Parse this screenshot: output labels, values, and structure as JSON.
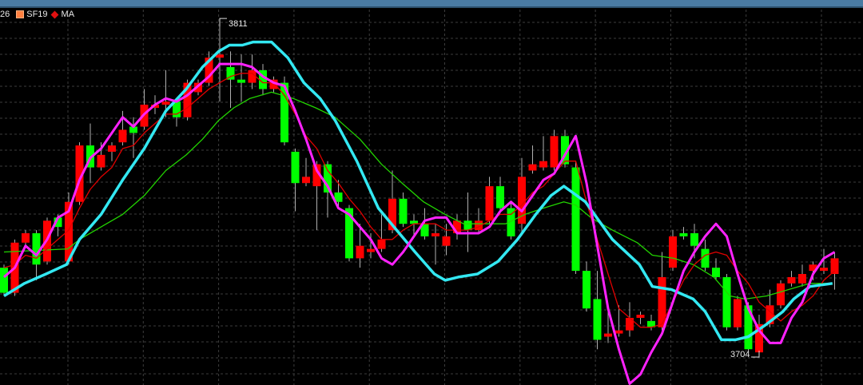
{
  "legend": {
    "prefix": "26",
    "symbol": "SF19",
    "indicator": "MA",
    "symbol_color": "#ff8040",
    "indicator_color": "#e01010"
  },
  "chart_data": {
    "type": "candlestick",
    "title": "",
    "grid": true,
    "ylim": [
      3695,
      3817
    ],
    "colors": {
      "up": "#ff0000",
      "down": "#00ff00",
      "wick": "#b0b0b0",
      "background": "#000000"
    },
    "annotations": [
      {
        "text": "3811",
        "candle": 20,
        "kind": "high"
      },
      {
        "text": "3704",
        "candle": 70,
        "kind": "low"
      }
    ],
    "candles_ohlc": [
      [
        3732,
        3733,
        3723,
        3724
      ],
      [
        3724,
        3741,
        3723,
        3740
      ],
      [
        3740,
        3744,
        3739,
        3743
      ],
      [
        3743,
        3744,
        3728,
        3733
      ],
      [
        3734,
        3748,
        3733,
        3747
      ],
      [
        3748,
        3749,
        3742,
        3745
      ],
      [
        3734,
        3756,
        3733,
        3753
      ],
      [
        3753,
        3772,
        3752,
        3771
      ],
      [
        3771,
        3778,
        3759,
        3764
      ],
      [
        3764,
        3772,
        3763,
        3768
      ],
      [
        3769,
        3772,
        3766,
        3771
      ],
      [
        3772,
        3782,
        3771,
        3776
      ],
      [
        3777,
        3780,
        3767,
        3775
      ],
      [
        3777,
        3789,
        3776,
        3784
      ],
      [
        3783,
        3787,
        3781,
        3784
      ],
      [
        3784,
        3795,
        3780,
        3785
      ],
      [
        3785,
        3786,
        3777,
        3780
      ],
      [
        3780,
        3792,
        3779,
        3791
      ],
      [
        3788,
        3792,
        3787,
        3791
      ],
      [
        3791,
        3801,
        3790,
        3799
      ],
      [
        3799,
        3811,
        3785,
        3800
      ],
      [
        3796,
        3801,
        3783,
        3792
      ],
      [
        3792,
        3800,
        3785,
        3791
      ],
      [
        3791,
        3800,
        3789,
        3795
      ],
      [
        3795,
        3797,
        3787,
        3789
      ],
      [
        3789,
        3793,
        3788,
        3792
      ],
      [
        3791,
        3793,
        3771,
        3772
      ],
      [
        3769,
        3770,
        3750,
        3759
      ],
      [
        3759,
        3767,
        3758,
        3761
      ],
      [
        3758,
        3766,
        3744,
        3765
      ],
      [
        3765,
        3766,
        3748,
        3756
      ],
      [
        3756,
        3760,
        3751,
        3753
      ],
      [
        3751,
        3752,
        3734,
        3735
      ],
      [
        3735,
        3746,
        3732,
        3739
      ],
      [
        3737,
        3743,
        3735,
        3738
      ],
      [
        3738,
        3749,
        3737,
        3741
      ],
      [
        3744,
        3763,
        3743,
        3754
      ],
      [
        3754,
        3756,
        3745,
        3746
      ],
      [
        3747,
        3749,
        3742,
        3746
      ],
      [
        3746,
        3751,
        3741,
        3742
      ],
      [
        3742,
        3746,
        3733,
        3743
      ],
      [
        3739,
        3746,
        3736,
        3742
      ],
      [
        3743,
        3749,
        3741,
        3747
      ],
      [
        3747,
        3756,
        3737,
        3744
      ],
      [
        3744,
        3751,
        3743,
        3747
      ],
      [
        3747,
        3761,
        3746,
        3758
      ],
      [
        3758,
        3761,
        3750,
        3751
      ],
      [
        3751,
        3753,
        3741,
        3742
      ],
      [
        3746,
        3767,
        3743,
        3761
      ],
      [
        3763,
        3771,
        3762,
        3765
      ],
      [
        3764,
        3774,
        3763,
        3766
      ],
      [
        3764,
        3776,
        3763,
        3774
      ],
      [
        3774,
        3776,
        3764,
        3765
      ],
      [
        3764,
        3766,
        3730,
        3731
      ],
      [
        3731,
        3734,
        3718,
        3719
      ],
      [
        3722,
        3731,
        3706,
        3709
      ],
      [
        3710,
        3718,
        3708,
        3711
      ],
      [
        3711,
        3720,
        3710,
        3712
      ],
      [
        3712,
        3721,
        3710,
        3716
      ],
      [
        3716,
        3718,
        3714,
        3717
      ],
      [
        3715,
        3717,
        3712,
        3713
      ],
      [
        3713,
        3737,
        3712,
        3729
      ],
      [
        3732,
        3744,
        3731,
        3742
      ],
      [
        3743,
        3745,
        3741,
        3742
      ],
      [
        3743,
        3746,
        3735,
        3739
      ],
      [
        3738,
        3741,
        3731,
        3732
      ],
      [
        3732,
        3735,
        3728,
        3729
      ],
      [
        3729,
        3730,
        3712,
        3713
      ],
      [
        3713,
        3723,
        3712,
        3722
      ],
      [
        3720,
        3721,
        3705,
        3706
      ],
      [
        3705,
        3717,
        3704,
        3714
      ],
      [
        3714,
        3725,
        3713,
        3720
      ],
      [
        3720,
        3728,
        3719,
        3727
      ],
      [
        3727,
        3731,
        3726,
        3729
      ],
      [
        3727,
        3733,
        3726,
        3730
      ],
      [
        3731,
        3734,
        3728,
        3733
      ],
      [
        3731,
        3738,
        3730,
        3732
      ],
      [
        3730,
        3737,
        3725,
        3735
      ]
    ],
    "lines": [
      {
        "color": "#ff22ff",
        "values": [
          3729,
          3732,
          3739,
          3736,
          3741,
          3748,
          3750,
          3760,
          3767,
          3770,
          3775,
          3780,
          3777,
          3781,
          3784,
          3786,
          3785,
          3787,
          3790,
          3793,
          3797,
          3797,
          3797,
          3796,
          3793,
          3791,
          3790,
          3782,
          3773,
          3763,
          3758,
          3751,
          3749,
          3745,
          3741,
          3735,
          3733,
          3737,
          3742,
          3747,
          3748,
          3748,
          3743,
          3743,
          3743,
          3745,
          3750,
          3753,
          3750,
          3755,
          3760,
          3762,
          3768,
          3774,
          3759,
          3739,
          3719,
          3706,
          3695,
          3698,
          3705,
          3711,
          3721,
          3731,
          3737,
          3742,
          3746,
          3742,
          3730,
          3719,
          3712,
          3708,
          3708,
          3716,
          3721,
          3730,
          3735,
          3737
        ]
      },
      {
        "color": "#e00000",
        "values": [
          3732,
          3733,
          3736,
          3735,
          3738,
          3741,
          3744,
          3751,
          3757,
          3761,
          3764,
          3770,
          3771,
          3775,
          3778,
          3781,
          3781,
          3783,
          3786,
          3789,
          3791,
          3793,
          3794,
          3794,
          3791,
          3791,
          3787,
          3781,
          3774,
          3770,
          3763,
          3759,
          3754,
          3750,
          3745,
          3741,
          3741,
          3744,
          3746,
          3746,
          3746,
          3744,
          3744,
          3744,
          3745,
          3747,
          3749,
          3749,
          3752,
          3756,
          3758,
          3762,
          3766,
          3766,
          3753,
          3741,
          3730,
          3719,
          3716,
          3713,
          3713,
          3714,
          3721,
          3728,
          3733,
          3736,
          3737,
          3736,
          3731,
          3727,
          3721,
          3718,
          3715,
          3718,
          3720,
          3723,
          3728,
          3731
        ]
      },
      {
        "color": "#22d400",
        "points": [
          [
            0,
            3737
          ],
          [
            5.9,
            3738
          ],
          [
            7,
            3741
          ],
          [
            9,
            3745
          ],
          [
            11,
            3749
          ],
          [
            13,
            3755
          ],
          [
            15,
            3763
          ],
          [
            16.9,
            3768
          ],
          [
            18.4,
            3773
          ],
          [
            19.9,
            3779
          ],
          [
            21.3,
            3783
          ],
          [
            22.8,
            3786
          ],
          [
            24.8,
            3788
          ],
          [
            26.8,
            3786
          ],
          [
            28.9,
            3783
          ],
          [
            30.7,
            3780
          ],
          [
            33,
            3773
          ],
          [
            35,
            3765
          ],
          [
            36.9,
            3759
          ],
          [
            38.9,
            3753
          ],
          [
            40.9,
            3749
          ],
          [
            42.6,
            3746
          ],
          [
            44.1,
            3746
          ],
          [
            46.5,
            3746
          ],
          [
            48.3,
            3749
          ],
          [
            50,
            3751
          ],
          [
            51.9,
            3753
          ],
          [
            53,
            3752
          ],
          [
            54.4,
            3748
          ],
          [
            56.4,
            3744
          ],
          [
            58.7,
            3740
          ],
          [
            60.1,
            3736
          ],
          [
            62.1,
            3735
          ],
          [
            63.9,
            3733
          ],
          [
            65.8,
            3729
          ],
          [
            67.3,
            3723
          ],
          [
            68.7,
            3722
          ],
          [
            70.7,
            3723
          ],
          [
            72.7,
            3725
          ],
          [
            74.7,
            3727
          ],
          [
            76.8,
            3727
          ]
        ]
      },
      {
        "color": "#33e8f2",
        "points": [
          [
            0,
            3723
          ],
          [
            1.9,
            3727
          ],
          [
            3.9,
            3730
          ],
          [
            5.8,
            3733
          ],
          [
            7,
            3741
          ],
          [
            9,
            3749
          ],
          [
            11,
            3760
          ],
          [
            13,
            3770
          ],
          [
            15,
            3782
          ],
          [
            16.9,
            3789
          ],
          [
            18.4,
            3796
          ],
          [
            19.9,
            3801
          ],
          [
            20.9,
            3803
          ],
          [
            22.1,
            3803
          ],
          [
            23.1,
            3804
          ],
          [
            24.8,
            3804
          ],
          [
            26.3,
            3799
          ],
          [
            27.8,
            3791
          ],
          [
            29.3,
            3786
          ],
          [
            30.7,
            3779
          ],
          [
            32.7,
            3766
          ],
          [
            34.7,
            3751
          ],
          [
            36.4,
            3744
          ],
          [
            38.1,
            3737
          ],
          [
            39.9,
            3730
          ],
          [
            40.9,
            3728
          ],
          [
            42.1,
            3729
          ],
          [
            43.9,
            3730
          ],
          [
            45.8,
            3734
          ],
          [
            47.6,
            3741
          ],
          [
            49.3,
            3749
          ],
          [
            50.7,
            3755
          ],
          [
            51.9,
            3758
          ],
          [
            53.9,
            3753
          ],
          [
            56.4,
            3741
          ],
          [
            58.9,
            3733
          ],
          [
            60.1,
            3726
          ],
          [
            61.9,
            3725
          ],
          [
            63.9,
            3722
          ],
          [
            65,
            3718
          ],
          [
            66.5,
            3709
          ],
          [
            67.8,
            3709
          ],
          [
            69,
            3710
          ],
          [
            70.7,
            3714
          ],
          [
            72.2,
            3718
          ],
          [
            73.2,
            3722
          ],
          [
            74.7,
            3726
          ],
          [
            76.8,
            3727
          ]
        ]
      }
    ]
  }
}
